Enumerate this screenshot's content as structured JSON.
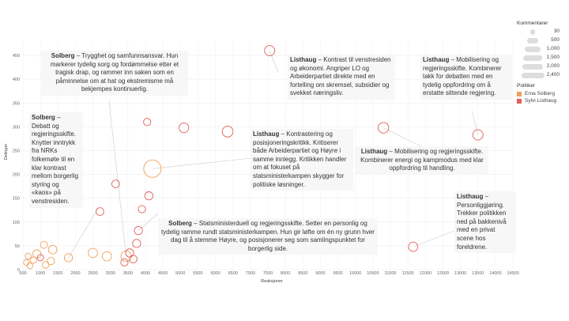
{
  "chart_data": {
    "type": "scatter",
    "xlabel": "Reaksjoner",
    "ylabel": "Delinger",
    "xlim": [
      500,
      14500
    ],
    "ylim": [
      0,
      480
    ],
    "xticks": [
      500,
      1000,
      1500,
      2000,
      2500,
      3000,
      3500,
      4000,
      4500,
      5000,
      5500,
      6000,
      6500,
      7000,
      7500,
      8000,
      8500,
      9000,
      9500,
      10000,
      10500,
      11000,
      11500,
      12000,
      12500,
      13000,
      13500,
      14000,
      14500
    ],
    "xtick_labels": [
      "500",
      "1000",
      "1500",
      "2000",
      "2500",
      "3000",
      "3500",
      "4000",
      "4500",
      "5000",
      "5500",
      "6000",
      "6500",
      "7000",
      "7500",
      "8000",
      "8500",
      "9000",
      "9500",
      "10000",
      "10500",
      "11000",
      "11500",
      "12000",
      "12500",
      "13000",
      "13500",
      "14000",
      "14500"
    ],
    "yticks": [
      0,
      50,
      100,
      150,
      200,
      250,
      300,
      350,
      400,
      450
    ],
    "ytick_labels": [
      "0",
      "50",
      "100",
      "150",
      "200",
      "250",
      "300",
      "350",
      "400",
      "450"
    ],
    "grid": true,
    "legend_position": "right",
    "size_legend": {
      "title": "Kommentarer",
      "entries": [
        {
          "label": "30",
          "value": 30
        },
        {
          "label": "500",
          "value": 500
        },
        {
          "label": "1,000",
          "value": 1000
        },
        {
          "label": "1,500",
          "value": 1500
        },
        {
          "label": "2,000",
          "value": 2000
        },
        {
          "label": "2,400",
          "value": 2400
        }
      ]
    },
    "color_legend": {
      "title": "Politiker",
      "entries": [
        {
          "label": "Erna Solberg",
          "color": "#f0a058"
        },
        {
          "label": "Sylvi Listhaug",
          "color": "#e0605a"
        }
      ]
    },
    "series": [
      {
        "name": "Erna Solberg",
        "color": "#f0a058",
        "points": [
          {
            "x": 600,
            "y": 15,
            "c": 80
          },
          {
            "x": 650,
            "y": 28,
            "c": 100
          },
          {
            "x": 700,
            "y": 8,
            "c": 90
          },
          {
            "x": 800,
            "y": 20,
            "c": 130
          },
          {
            "x": 900,
            "y": 33,
            "c": 300
          },
          {
            "x": 1100,
            "y": 52,
            "c": 180
          },
          {
            "x": 1150,
            "y": 10,
            "c": 150
          },
          {
            "x": 1300,
            "y": 18,
            "c": 200
          },
          {
            "x": 1350,
            "y": 42,
            "c": 350
          },
          {
            "x": 1800,
            "y": 25,
            "c": 300
          },
          {
            "x": 2500,
            "y": 35,
            "c": 450
          },
          {
            "x": 2900,
            "y": 28,
            "c": 450
          },
          {
            "x": 3450,
            "y": 28,
            "c": 650
          },
          {
            "x": 4200,
            "y": 212,
            "c": 2400
          }
        ]
      },
      {
        "name": "Sylvi Listhaug",
        "color": "#e0605a",
        "points": [
          {
            "x": 1000,
            "y": 25,
            "c": 120
          },
          {
            "x": 2700,
            "y": 122,
            "c": 250
          },
          {
            "x": 3400,
            "y": 15,
            "c": 200
          },
          {
            "x": 3550,
            "y": 35,
            "c": 300
          },
          {
            "x": 3650,
            "y": 22,
            "c": 250
          },
          {
            "x": 3750,
            "y": 55,
            "c": 300
          },
          {
            "x": 3800,
            "y": 82,
            "c": 300
          },
          {
            "x": 3900,
            "y": 127,
            "c": 200
          },
          {
            "x": 3150,
            "y": 180,
            "c": 250
          },
          {
            "x": 4100,
            "y": 155,
            "c": 300
          },
          {
            "x": 4050,
            "y": 310,
            "c": 200
          },
          {
            "x": 5100,
            "y": 298,
            "c": 500
          },
          {
            "x": 6350,
            "y": 290,
            "c": 700
          },
          {
            "x": 7550,
            "y": 460,
            "c": 600
          },
          {
            "x": 10800,
            "y": 298,
            "c": 650
          },
          {
            "x": 11650,
            "y": 48,
            "c": 450
          },
          {
            "x": 13500,
            "y": 283,
            "c": 600
          }
        ]
      }
    ]
  },
  "annotations": [
    {
      "name": "Solberg",
      "text": " – Trygghet og samfunnsansvar. Hun markerer tydelig sorg og fordømmelse etter et tragisk drap, og rammer inn saken som en påminnelse om at hat og ekstremisme må bekjempes kontinuerlig."
    },
    {
      "name": "Solberg",
      "text": " – Debatt og regjeringsskifte. Knytter inntrykk fra NRKs folkemøte til en klar kontrast mellom borgerlig styring og «kaos» på venstresiden."
    },
    {
      "name": "Listhaug",
      "text": " – Kontrast til venstresiden og økonomi. Angriper LO og Arbeiderpartiet direkte med en fortelling om skremsel, subsidier og svekket næringsliv."
    },
    {
      "name": "Listhaug",
      "text": " – Mobilisering og regjeringsskifte. Kombinerer takk for debatten med en tydelig oppfordring om å erstatte sittende regjering."
    },
    {
      "name": "Listhaug",
      "text": " – Kontrastering og posisjoneringskritikk. Kritiserer både Arbeiderpartiet og Høyre i samme innlegg. Kritikken handler om at fokuset på statsministerkampen skygger for politiske løsninger."
    },
    {
      "name": "Listhaug",
      "text": " – Mobilisering og regjeringsskifte. Kombinerer energi og kampmodus med klar oppfordring til handling."
    },
    {
      "name": "Solberg",
      "text": " – Statsministerduell og regjeringsskifte. Setter en personlig og tydelig ramme rundt statsministerkampen. Hun gir løfte om én ny grunn hver dag til å stemme Høyre, og posisjonerer seg som samlingspunktet for borgerlig side."
    },
    {
      "name": "Listhaug",
      "text": " – Personliggjøring. Trekker politikken ned på bakkenivå med en privat scene hos foreldrene."
    }
  ]
}
